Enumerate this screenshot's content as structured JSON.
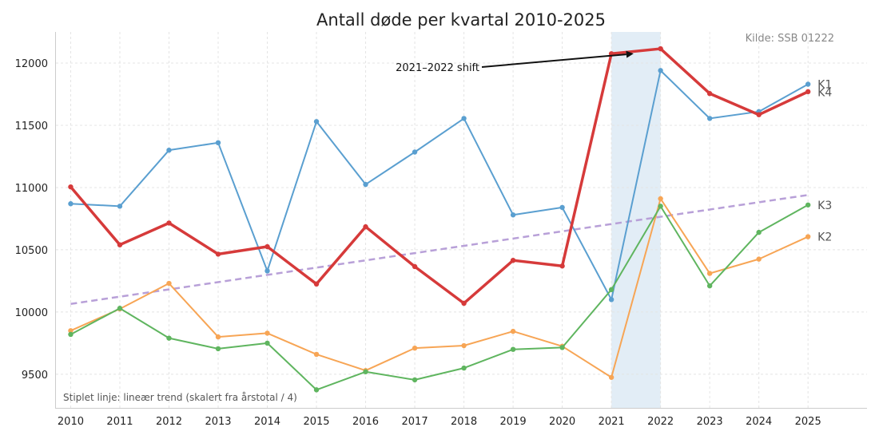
{
  "chart_data": {
    "type": "line",
    "title": "Antall døde per kvartal 2010-2025",
    "source": "Kilde: SSB 01222",
    "note": "Stiplet linje: lineær trend (skalert fra årstotal / 4)",
    "xlabel": "",
    "ylabel": "",
    "x": [
      2010,
      2011,
      2012,
      2013,
      2014,
      2015,
      2016,
      2017,
      2018,
      2019,
      2020,
      2021,
      2022,
      2023,
      2024,
      2025
    ],
    "x_ticks": [
      "2010",
      "2011",
      "2012",
      "2013",
      "2014",
      "2015",
      "2016",
      "2017",
      "2018",
      "2019",
      "2020",
      "2021",
      "2022",
      "2023",
      "2024",
      "2025"
    ],
    "y_ticks": [
      "9500",
      "10000",
      "10500",
      "11000",
      "11500",
      "12000"
    ],
    "xlim": [
      2009.7,
      2026.2
    ],
    "ylim": [
      9230,
      12250
    ],
    "grid": true,
    "highlight_span": [
      2021,
      2022
    ],
    "series": [
      {
        "name": "K1",
        "color": "#5a9fd0",
        "width": 2,
        "values": [
          10870,
          10850,
          11300,
          11360,
          10330,
          11530,
          11025,
          11285,
          11555,
          10780,
          10840,
          10100,
          11940,
          11555,
          11610,
          11830
        ]
      },
      {
        "name": "K2",
        "color": "#f7a555",
        "width": 2,
        "values": [
          9850,
          10025,
          10230,
          9800,
          9830,
          9660,
          9530,
          9710,
          9730,
          9845,
          9725,
          9475,
          10910,
          10310,
          10425,
          10605
        ]
      },
      {
        "name": "K3",
        "color": "#5fb55f",
        "width": 2,
        "values": [
          9820,
          10030,
          9790,
          9705,
          9750,
          9375,
          9520,
          9455,
          9550,
          9700,
          9715,
          10180,
          10850,
          10210,
          10640,
          10860
        ]
      },
      {
        "name": "K4",
        "color": "#d63a3a",
        "width": 3.5,
        "values": [
          11005,
          10540,
          10715,
          10465,
          10525,
          10225,
          10685,
          10365,
          10070,
          10415,
          10370,
          12075,
          12115,
          11755,
          11585,
          11770
        ]
      }
    ],
    "trend": {
      "color": "#b8a0d8",
      "x": [
        2010,
        2025
      ],
      "values": [
        10065,
        10940
      ]
    },
    "annotation": {
      "text": "2021–2022 shift",
      "target_x": 2021.45,
      "target_y": 12075
    }
  }
}
